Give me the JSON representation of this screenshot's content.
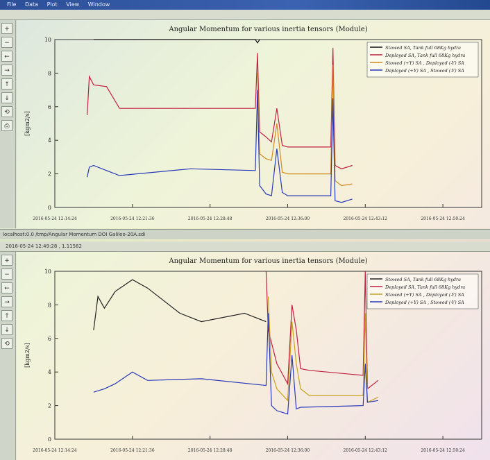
{
  "window_top": {
    "menu_items": [
      "File",
      "Data",
      "Plot",
      "View",
      "Window"
    ],
    "chart_title": "Angular Momentum for various inertia tensors (Module)",
    "status_text": "localhost:0.0 /tmp/Angular Momentum DOI Galileo-20A.sdi"
  },
  "window_bottom": {
    "info_text": "2016-05-24 12:49:28 , 1.11562",
    "chart_title": "Angular Momentum for various inertia tensors (Module)"
  },
  "chart_data": [
    {
      "type": "line",
      "title": "Angular Momentum for various inertia tensors (Module)",
      "xlabel": "",
      "ylabel": "[kgm2/s]",
      "ylim": [
        0,
        10
      ],
      "yticks": [
        0,
        2,
        4,
        6,
        8,
        10
      ],
      "xticks": [
        "2016-05-24 12:14:24",
        "2016-05-24 12:21:36",
        "2016-05-24 12:28:48",
        "2016-05-24 12:36:00",
        "2016-05-24 12:43:12",
        "2016-05-24 12:50:24"
      ],
      "xlim": [
        "2016-05-24 12:14:24",
        "2016-05-24 12:54:00"
      ],
      "grid": false,
      "legend_position": "top-right",
      "series": [
        {
          "name": "Stowed SA, Tank full 68Kg hydra",
          "color": "#111111",
          "points": [
            [
              "2016-05-24 12:18:00",
              10
            ],
            [
              "2016-05-24 12:33:00",
              10
            ],
            [
              "2016-05-24 12:33:12",
              9.8
            ],
            [
              "2016-05-24 12:33:24",
              10
            ]
          ]
        },
        {
          "name": "Deployed SA, Tank full 68Kg hydra",
          "color": "#c02040",
          "points": [
            [
              "2016-05-24 12:17:24",
              5.5
            ],
            [
              "2016-05-24 12:17:36",
              7.8
            ],
            [
              "2016-05-24 12:18:00",
              7.3
            ],
            [
              "2016-05-24 12:19:12",
              7.2
            ],
            [
              "2016-05-24 12:20:24",
              5.9
            ],
            [
              "2016-05-24 12:33:00",
              5.9
            ],
            [
              "2016-05-24 12:33:12",
              9.2
            ],
            [
              "2016-05-24 12:33:24",
              4.5
            ],
            [
              "2016-05-24 12:34:00",
              4.2
            ],
            [
              "2016-05-24 12:34:30",
              3.9
            ],
            [
              "2016-05-24 12:35:00",
              5.9
            ],
            [
              "2016-05-24 12:35:30",
              3.7
            ],
            [
              "2016-05-24 12:36:00",
              3.6
            ],
            [
              "2016-05-24 12:40:00",
              3.6
            ],
            [
              "2016-05-24 12:40:12",
              9.5
            ],
            [
              "2016-05-24 12:40:24",
              2.5
            ],
            [
              "2016-05-24 12:41:00",
              2.3
            ],
            [
              "2016-05-24 12:42:00",
              2.5
            ]
          ]
        },
        {
          "name": "Stowed (+Y) SA , Deployed (-Y) SA",
          "color": "#d08a20",
          "points": [
            [
              "2016-05-24 12:33:12",
              8.0
            ],
            [
              "2016-05-24 12:33:24",
              3.2
            ],
            [
              "2016-05-24 12:34:00",
              2.9
            ],
            [
              "2016-05-24 12:34:30",
              2.8
            ],
            [
              "2016-05-24 12:35:00",
              5.0
            ],
            [
              "2016-05-24 12:35:30",
              2.1
            ],
            [
              "2016-05-24 12:36:00",
              2.0
            ],
            [
              "2016-05-24 12:40:00",
              2.0
            ],
            [
              "2016-05-24 12:40:12",
              8.5
            ],
            [
              "2016-05-24 12:40:24",
              1.6
            ],
            [
              "2016-05-24 12:41:00",
              1.3
            ],
            [
              "2016-05-24 12:42:00",
              1.4
            ]
          ]
        },
        {
          "name": "Deployed (+Y) SA , Stowed (-Y) SA",
          "color": "#2838b8",
          "points": [
            [
              "2016-05-24 12:17:24",
              1.8
            ],
            [
              "2016-05-24 12:17:36",
              2.4
            ],
            [
              "2016-05-24 12:18:00",
              2.5
            ],
            [
              "2016-05-24 12:19:12",
              2.2
            ],
            [
              "2016-05-24 12:20:24",
              1.9
            ],
            [
              "2016-05-24 12:27:00",
              2.3
            ],
            [
              "2016-05-24 12:33:00",
              2.2
            ],
            [
              "2016-05-24 12:33:12",
              7.0
            ],
            [
              "2016-05-24 12:33:24",
              1.3
            ],
            [
              "2016-05-24 12:34:00",
              0.8
            ],
            [
              "2016-05-24 12:34:30",
              0.7
            ],
            [
              "2016-05-24 12:35:00",
              3.5
            ],
            [
              "2016-05-24 12:35:30",
              0.9
            ],
            [
              "2016-05-24 12:36:00",
              0.7
            ],
            [
              "2016-05-24 12:40:00",
              0.7
            ],
            [
              "2016-05-24 12:40:12",
              6.5
            ],
            [
              "2016-05-24 12:40:24",
              0.4
            ],
            [
              "2016-05-24 12:41:00",
              0.3
            ],
            [
              "2016-05-24 12:42:00",
              0.5
            ]
          ]
        }
      ]
    },
    {
      "type": "line",
      "title": "Angular Momentum for various inertia tensors (Module)",
      "xlabel": "",
      "ylabel": "[kgm2/s]",
      "ylim": [
        0,
        10
      ],
      "yticks": [
        0,
        2,
        4,
        6,
        8,
        10
      ],
      "xticks": [
        "2016-05-24 12:14:24",
        "2016-05-24 12:21:36",
        "2016-05-24 12:28:48",
        "2016-05-24 12:36:00",
        "2016-05-24 12:43:12",
        "2016-05-24 12:50:24"
      ],
      "xlim": [
        "2016-05-24 12:14:24",
        "2016-05-24 12:54:00"
      ],
      "grid": false,
      "legend_position": "top-right",
      "series": [
        {
          "name": "Stowed SA, Tank full 68Kg hydra",
          "color": "#222222",
          "points": [
            [
              "2016-05-24 12:18:00",
              6.5
            ],
            [
              "2016-05-24 12:18:24",
              8.5
            ],
            [
              "2016-05-24 12:19:00",
              7.8
            ],
            [
              "2016-05-24 12:20:00",
              8.8
            ],
            [
              "2016-05-24 12:21:36",
              9.5
            ],
            [
              "2016-05-24 12:23:00",
              9.0
            ],
            [
              "2016-05-24 12:26:00",
              7.5
            ],
            [
              "2016-05-24 12:28:00",
              7.0
            ],
            [
              "2016-05-24 12:32:00",
              7.5
            ],
            [
              "2016-05-24 12:34:00",
              7.0
            ]
          ]
        },
        {
          "name": "Deployed SA, Tank full 68Kg hydra",
          "color": "#c02040",
          "points": [
            [
              "2016-05-24 12:34:00",
              10.0
            ],
            [
              "2016-05-24 12:34:12",
              6.5
            ],
            [
              "2016-05-24 12:35:00",
              4.5
            ],
            [
              "2016-05-24 12:36:00",
              3.3
            ],
            [
              "2016-05-24 12:36:24",
              8.0
            ],
            [
              "2016-05-24 12:36:48",
              6.5
            ],
            [
              "2016-05-24 12:37:12",
              4.2
            ],
            [
              "2016-05-24 12:38:00",
              4.1
            ],
            [
              "2016-05-24 12:43:00",
              3.8
            ],
            [
              "2016-05-24 12:43:12",
              10.0
            ],
            [
              "2016-05-24 12:43:24",
              3.0
            ],
            [
              "2016-05-24 12:44:24",
              3.5
            ]
          ]
        },
        {
          "name": "Stowed (+Y) SA , Deployed (-Y) SA",
          "color": "#c8a020",
          "points": [
            [
              "2016-05-24 12:34:12",
              8.5
            ],
            [
              "2016-05-24 12:34:30",
              4.0
            ],
            [
              "2016-05-24 12:35:00",
              3.0
            ],
            [
              "2016-05-24 12:36:00",
              2.3
            ],
            [
              "2016-05-24 12:36:24",
              7.0
            ],
            [
              "2016-05-24 12:36:48",
              4.5
            ],
            [
              "2016-05-24 12:37:12",
              3.0
            ],
            [
              "2016-05-24 12:38:00",
              2.6
            ],
            [
              "2016-05-24 12:43:00",
              2.6
            ],
            [
              "2016-05-24 12:43:12",
              7.5
            ],
            [
              "2016-05-24 12:43:24",
              2.2
            ],
            [
              "2016-05-24 12:44:24",
              2.5
            ]
          ]
        },
        {
          "name": "Deployed (+Y) SA , Stowed (-Y) SA",
          "color": "#2838b8",
          "points": [
            [
              "2016-05-24 12:18:00",
              2.8
            ],
            [
              "2016-05-24 12:19:00",
              3.0
            ],
            [
              "2016-05-24 12:20:00",
              3.3
            ],
            [
              "2016-05-24 12:21:36",
              4.0
            ],
            [
              "2016-05-24 12:23:00",
              3.5
            ],
            [
              "2016-05-24 12:28:00",
              3.6
            ],
            [
              "2016-05-24 12:34:00",
              3.2
            ],
            [
              "2016-05-24 12:34:12",
              7.5
            ],
            [
              "2016-05-24 12:34:30",
              2.0
            ],
            [
              "2016-05-24 12:35:00",
              1.7
            ],
            [
              "2016-05-24 12:36:00",
              1.5
            ],
            [
              "2016-05-24 12:36:24",
              5.0
            ],
            [
              "2016-05-24 12:36:48",
              1.8
            ],
            [
              "2016-05-24 12:37:12",
              1.9
            ],
            [
              "2016-05-24 12:43:00",
              2.0
            ],
            [
              "2016-05-24 12:43:12",
              4.5
            ],
            [
              "2016-05-24 12:43:24",
              2.2
            ],
            [
              "2016-05-24 12:44:24",
              2.3
            ]
          ]
        }
      ]
    }
  ]
}
